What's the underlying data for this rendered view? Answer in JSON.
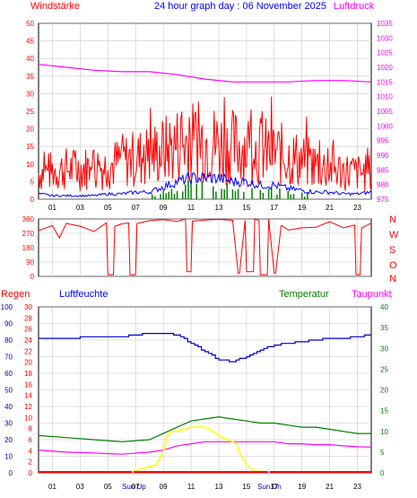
{
  "header": {
    "left_title": "Windstärke",
    "center_title": "24 hour graph day : 06 November 2025",
    "right_title": "Luftdruck"
  },
  "mid_legend": {
    "labels": [
      "N",
      "W",
      "S",
      "O",
      "N"
    ]
  },
  "bottom_header": {
    "regen": "Regen",
    "luftfeuchte": "Luftfeuchte",
    "temperatur": "Temperatur",
    "taupunkt": "Taupunkt"
  },
  "markers": {
    "sun_up": "Sun Up",
    "sun_down": "Sun Dn"
  },
  "colors": {
    "wind_gust": "#ff0000",
    "wind_avg": "#0000ff",
    "wind_bars": "#008000",
    "pressure": "#ff00ff",
    "direction": "#ff0000",
    "humidity": "#0000c0",
    "temperature": "#008000",
    "dewpoint": "#ff00ff",
    "solar": "#ffff00",
    "rain": "#ff0000",
    "grid": "#c8c8c8"
  },
  "chart_data": [
    {
      "type": "line",
      "title": "24 hour graph day : 06 November 2025",
      "ylabel": "Windstärke",
      "y2label": "Luftdruck",
      "x": [
        "01",
        "03",
        "05",
        "07",
        "09",
        "11",
        "13",
        "15",
        "17",
        "19",
        "21",
        "23"
      ],
      "ylim": [
        0,
        50
      ],
      "y2lim": [
        975,
        1035
      ],
      "yticks": [
        "0",
        "5",
        "10",
        "15",
        "20",
        "25",
        "30",
        "35",
        "40",
        "45",
        "50"
      ],
      "y2ticks": [
        "975",
        "980",
        "985",
        "990",
        "995",
        "1000",
        "1005",
        "1010",
        "1015",
        "1020",
        "1025",
        "1030",
        "1035"
      ],
      "grid": true,
      "series": [
        {
          "kind": "gust",
          "x": [
            0,
            1,
            2,
            3,
            4,
            5,
            6,
            7,
            8,
            9,
            10,
            11,
            12,
            13,
            14,
            15,
            16,
            17,
            18,
            19,
            20,
            21,
            22,
            23,
            24
          ],
          "values": [
            13,
            14,
            15,
            15,
            16,
            16,
            19,
            20,
            22,
            24,
            27,
            28,
            29,
            27,
            26,
            26,
            24,
            23,
            21,
            19,
            17,
            15,
            14,
            13,
            13
          ]
        },
        {
          "kind": "average",
          "x": [
            0,
            1,
            2,
            3,
            4,
            5,
            6,
            7,
            8,
            9,
            10,
            11,
            12,
            13,
            14,
            15,
            16,
            17,
            18,
            19,
            20,
            21,
            22,
            23,
            24
          ],
          "values": [
            1.5,
            1,
            1,
            1,
            1,
            1.5,
            1.5,
            2,
            2,
            3.5,
            5,
            6,
            6,
            6,
            5,
            5,
            4,
            4,
            3,
            2.5,
            2,
            2,
            1.5,
            1.5,
            2
          ]
        },
        {
          "kind": "pressure",
          "x": [
            0,
            2,
            4,
            6,
            8,
            10,
            12,
            14,
            16,
            18,
            20,
            22,
            24
          ],
          "values": [
            1021,
            1020,
            1019,
            1018.5,
            1018.5,
            1017.5,
            1016,
            1015,
            1015,
            1015,
            1015.5,
            1015.5,
            1015
          ]
        }
      ]
    },
    {
      "type": "line",
      "ylabel": "Windrichtung",
      "x": [
        "01",
        "03",
        "05",
        "07",
        "09",
        "11",
        "13",
        "15",
        "17",
        "19",
        "21",
        "23"
      ],
      "ylim": [
        0,
        360
      ],
      "yticks": [
        "0",
        "90",
        "180",
        "270",
        "360"
      ],
      "grid": true,
      "series": [
        {
          "kind": "direction",
          "x": [
            0,
            1,
            1.5,
            2,
            3,
            4,
            4.9,
            5,
            5.4,
            5.5,
            6,
            6.5,
            6.6,
            7.0,
            7.1,
            8,
            9,
            10,
            10.6,
            10.7,
            11.0,
            11.1,
            12,
            13,
            14,
            14.4,
            14.5,
            14.9,
            15.0,
            15.5,
            15.6,
            15.9,
            16,
            16.5,
            16.6,
            17,
            17.1,
            17.5,
            17.6,
            18,
            19,
            20,
            21,
            22,
            22.8,
            22.9,
            23.2,
            23.3,
            24
          ],
          "values": [
            300,
            310,
            260,
            320,
            305,
            300,
            330,
            10,
            10,
            330,
            340,
            350,
            10,
            10,
            340,
            330,
            350,
            340,
            350,
            30,
            30,
            340,
            350,
            340,
            350,
            20,
            20,
            350,
            30,
            30,
            350,
            340,
            10,
            10,
            340,
            20,
            20,
            330,
            310,
            300,
            320,
            300,
            330,
            320,
            330,
            10,
            10,
            320,
            330
          ]
        }
      ]
    },
    {
      "type": "line",
      "ylabel": "Luftfeuchte",
      "x": [
        "01",
        "03",
        "05",
        "07",
        "09",
        "11",
        "13",
        "15",
        "17",
        "19",
        "21",
        "23"
      ],
      "ylim": [
        0,
        100
      ],
      "yticks": [
        "0",
        "10",
        "20",
        "30",
        "40",
        "50",
        "60",
        "70",
        "80",
        "90",
        "100"
      ],
      "y2lim": [
        0,
        40
      ],
      "y2ticks": [
        "0",
        "5",
        "10",
        "15",
        "20",
        "25",
        "30",
        "35",
        "40"
      ],
      "y3lim": [
        0,
        30
      ],
      "y3ticks": [
        "0",
        "2",
        "4",
        "6",
        "8",
        "10",
        "12",
        "14",
        "16",
        "18",
        "20",
        "22",
        "24",
        "26",
        "28",
        "30"
      ],
      "grid": true,
      "series": [
        {
          "name": "Luftfeuchte",
          "x": [
            0,
            2,
            4,
            6,
            7,
            8,
            9,
            10,
            11,
            12,
            13,
            14,
            15,
            16,
            17,
            18,
            19,
            20,
            21,
            22,
            23,
            24
          ],
          "values": [
            81,
            81,
            82,
            82,
            83,
            84,
            84,
            83,
            78,
            73,
            68,
            67,
            70,
            74,
            77,
            78,
            79,
            80,
            81,
            81,
            82,
            83
          ]
        },
        {
          "name": "Temperatur",
          "x": [
            0,
            2,
            4,
            6,
            8,
            9,
            10,
            11,
            12,
            13,
            14,
            15,
            16,
            17,
            18,
            19,
            20,
            21,
            22,
            23,
            24
          ],
          "values": [
            9,
            8.5,
            8,
            7.5,
            8,
            9.5,
            11,
            12.5,
            13,
            13.5,
            13,
            12.5,
            12,
            12,
            11.5,
            11,
            11,
            10.5,
            10,
            9.5,
            9.5
          ]
        },
        {
          "name": "Taupunkt",
          "x": [
            0,
            2,
            4,
            6,
            8,
            9,
            10,
            11,
            12,
            13,
            14,
            15,
            16,
            17,
            18,
            19,
            20,
            21,
            22,
            23,
            24
          ],
          "values": [
            5.5,
            5,
            4.8,
            4.5,
            5,
            5.5,
            6.5,
            7,
            7.5,
            7.5,
            7.5,
            7.5,
            7.5,
            7.5,
            7,
            7,
            6.8,
            6.8,
            6.5,
            6.3,
            6.2
          ]
        },
        {
          "name": "Solar",
          "x": [
            6.8,
            7,
            7.5,
            8,
            8.5,
            9,
            9.3,
            9.6,
            10,
            10.5,
            11,
            11.5,
            12,
            12.3,
            12.6,
            13,
            13.3,
            13.6,
            14,
            14.3,
            14.5,
            15,
            15.5,
            16,
            16.5
          ],
          "values": [
            0.5,
            0.5,
            1,
            1.5,
            2,
            5,
            9,
            10,
            10,
            10.5,
            11,
            11,
            11,
            10.5,
            10,
            9,
            8.5,
            8,
            7.5,
            7,
            5,
            2,
            0.5,
            0.3,
            0.3
          ]
        },
        {
          "name": "Regen",
          "x": [
            0,
            24
          ],
          "values": [
            0,
            0
          ]
        }
      ]
    }
  ]
}
